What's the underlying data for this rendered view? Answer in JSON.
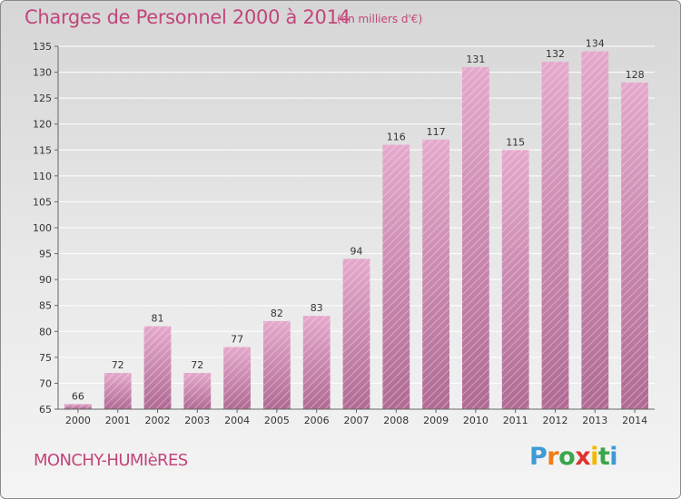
{
  "chart_data": {
    "type": "bar",
    "title": "Charges de Personnel 2000 à 2014",
    "subtitle": "(en milliers d'€)",
    "categories": [
      "2000",
      "2001",
      "2002",
      "2003",
      "2004",
      "2005",
      "2006",
      "2007",
      "2008",
      "2009",
      "2010",
      "2011",
      "2012",
      "2013",
      "2014"
    ],
    "values": [
      66,
      72,
      81,
      72,
      77,
      82,
      83,
      94,
      116,
      117,
      131,
      115,
      132,
      134,
      128
    ],
    "ylim": [
      65,
      135
    ],
    "yticks": [
      65,
      70,
      75,
      80,
      85,
      90,
      95,
      100,
      105,
      110,
      115,
      120,
      125,
      130,
      135
    ],
    "grid": true,
    "colors": {
      "bar_top": "#e5a9cc",
      "bar_bottom": "#b06a94",
      "text": "#c2457c"
    }
  },
  "footer": {
    "place": "MONCHY-HUMIèRES",
    "logo_letters": [
      "P",
      "r",
      "o",
      "x",
      "i",
      "t",
      "i"
    ],
    "logo_colors": [
      "#3d9ad6",
      "#f07d1a",
      "#3aa64a",
      "#e0342f",
      "#f0b800",
      "#3aa64a",
      "#3d9ad6"
    ]
  }
}
